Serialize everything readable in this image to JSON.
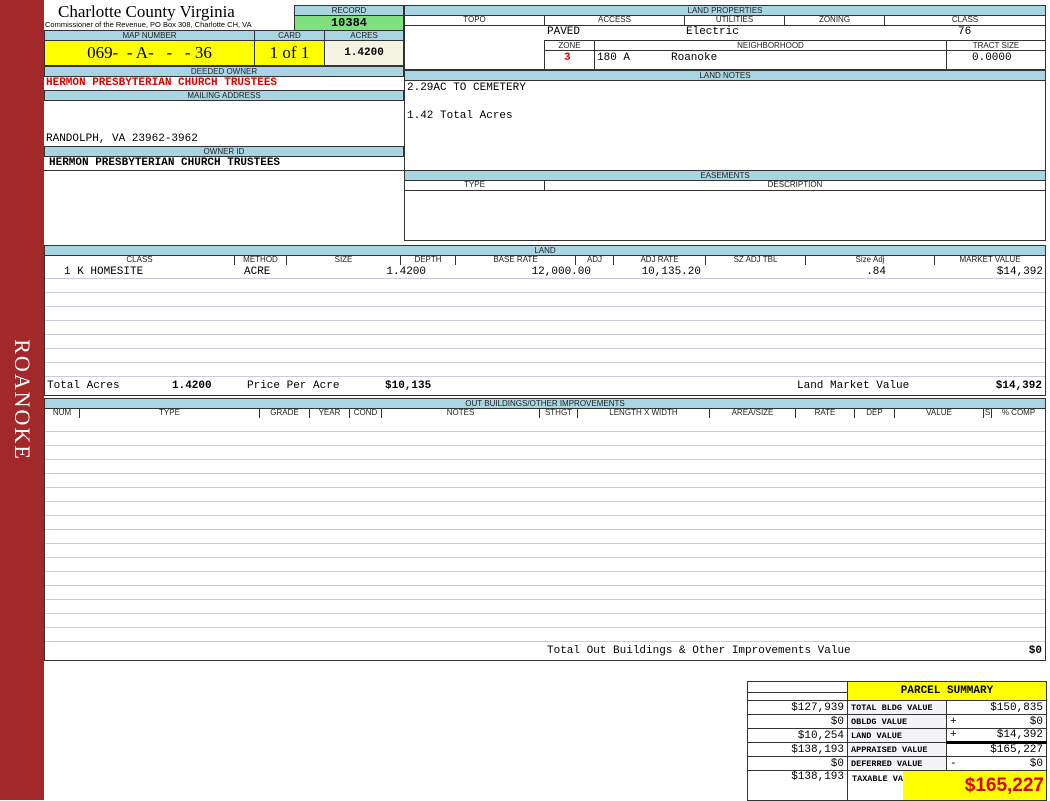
{
  "sidebar": {
    "label": "ROANOKE",
    "color": "#a3282a"
  },
  "header": {
    "title": "Charlotte County Virginia",
    "subtitle": "Commissioner of the Revenue, PO Box 308, Charlotte CH, VA",
    "record_label": "RECORD",
    "record": "10384",
    "map_number_label": "MAP NUMBER",
    "map_number": "069-  - A-   -   - 36",
    "card_label": "CARD",
    "card": "1 of 1",
    "acres_label": "ACRES",
    "acres": "1.4200"
  },
  "owner": {
    "deeded_label": "DEEDED OWNER",
    "deeded": "HERMON PRESBYTERIAN CHURCH TRUSTEES",
    "mailing_label": "MAILING ADDRESS",
    "mailing": "RANDOLPH, VA 23962-3962",
    "owner_id_label": "OWNER ID",
    "owner_id": "HERMON PRESBYTERIAN CHURCH TRUSTEES"
  },
  "land_properties": {
    "title": "LAND PROPERTIES",
    "topo_label": "TOPO",
    "access_label": "ACCESS",
    "utilities_label": "UTILITIES",
    "zoning_label": "ZONING",
    "class_label": "CLASS",
    "access": "PAVED",
    "utilities": "Electric",
    "class": "76",
    "zone_label": "ZONE",
    "neighborhood_label": "NEIGHBORHOOD",
    "tract_label": "TRACT SIZE",
    "zone": "3",
    "neighborhood_code": "180 A",
    "neighborhood": "Roanoke",
    "tract_size": "0.0000"
  },
  "land_notes": {
    "title": "LAND NOTES",
    "line1": "2.29AC TO CEMETERY",
    "line2": "1.42 Total Acres"
  },
  "easements": {
    "title": "EASEMENTS",
    "type_label": "TYPE",
    "description_label": "DESCRIPTION"
  },
  "land": {
    "title": "LAND",
    "columns": [
      "CLASS",
      "METHOD",
      "SIZE",
      "DEPTH",
      "BASE RATE",
      "ADJ",
      "ADJ RATE",
      "SZ ADJ TBL",
      "Size Adj",
      "MARKET VALUE"
    ],
    "rows": [
      {
        "class": "1 K HOMESITE",
        "method": "ACRE",
        "size": "1.4200",
        "depth": "",
        "base_rate": "12,000.00",
        "adj": "",
        "adj_rate": "10,135.20",
        "sz_adj_tbl": "",
        "size_adj": ".84",
        "market_value": "$14,392"
      }
    ],
    "total_acres_label": "Total Acres",
    "total_acres": "1.4200",
    "price_per_acre_label": "Price Per Acre",
    "price_per_acre": "$10,135",
    "market_value_label": "Land Market Value",
    "market_value": "$14,392"
  },
  "outbuildings": {
    "title": "OUT BUILDINGS/OTHER IMPROVEMENTS",
    "columns": [
      "NUM",
      "TYPE",
      "GRADE",
      "YEAR",
      "COND",
      "NOTES",
      "STHGT",
      "LENGTH X WIDTH",
      "AREA/SIZE",
      "RATE",
      "DEP",
      "VALUE",
      "S",
      "% COMP"
    ],
    "total_label": "Total Out Buildings & Other Improvements Value",
    "total": "$0"
  },
  "parcel_summary": {
    "title": "PARCEL SUMMARY",
    "rows": [
      {
        "prior": "$127,939",
        "label": "TOTAL BLDG VALUE",
        "op": "",
        "value": "$150,835"
      },
      {
        "prior": "$0",
        "label": "OBLDG VALUE",
        "op": "+",
        "value": "$0"
      },
      {
        "prior": "$10,254",
        "label": "LAND VALUE",
        "op": "+",
        "value": "$14,392"
      },
      {
        "prior": "$138,193",
        "label": "APPRAISED VALUE",
        "op": "",
        "value": "$165,227"
      },
      {
        "prior": "$0",
        "label": "DEFERRED VALUE",
        "op": "-",
        "value": "$0"
      }
    ],
    "taxable_prior": "$138,193",
    "taxable_label": "TAXABLE VALUE",
    "taxable": "$165,227"
  },
  "colors": {
    "header_blue": "#a9d5e3",
    "yellow": "#ffff00",
    "green": "#80e080",
    "red": "#e00000"
  }
}
